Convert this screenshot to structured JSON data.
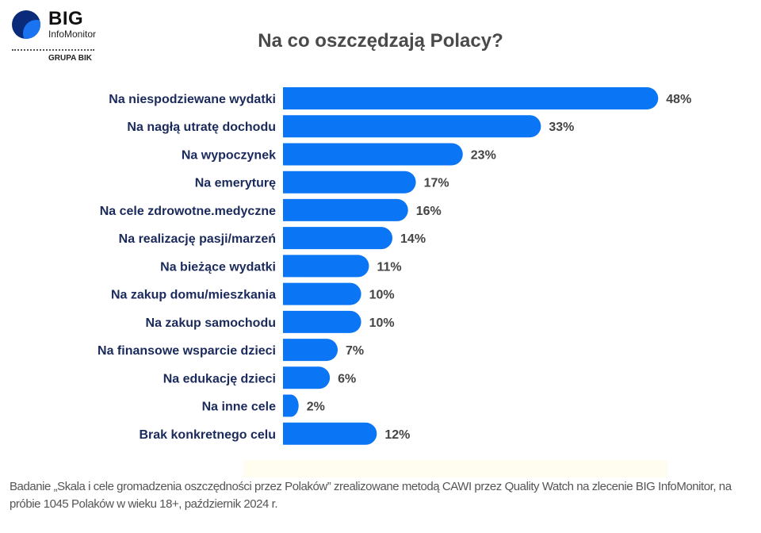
{
  "logo": {
    "name": "BIG",
    "sub": "InfoMonitor",
    "group": "GRUPA BIK"
  },
  "colors": {
    "bar": "#0a75f5",
    "category": "#1b2a5c",
    "value": "#444444"
  },
  "chart_data": {
    "type": "bar",
    "orientation": "horizontal",
    "title": "Na co oszczędzają Polacy?",
    "categories": [
      "Na niespodziewane wydatki",
      "Na nagłą utratę dochodu",
      "Na wypoczynek",
      "Na emeryturę",
      "Na cele zdrowotne.medyczne",
      "Na realizację pasji/marzeń",
      "Na bieżące wydatki",
      "Na zakup domu/mieszkania",
      "Na zakup samochodu",
      "Na finansowe wsparcie dzieci",
      "Na edukację dzieci",
      "Na inne cele",
      "Brak konkretnego celu"
    ],
    "values": [
      48,
      33,
      23,
      17,
      16,
      14,
      11,
      10,
      10,
      7,
      6,
      2,
      12
    ],
    "value_labels": [
      "48%",
      "33%",
      "23%",
      "17%",
      "16%",
      "14%",
      "11%",
      "10%",
      "10%",
      "7%",
      "6%",
      "2%",
      "12%"
    ],
    "unit": "%",
    "grid": false
  },
  "footer": "Badanie „Skala i cele gromadzenia oszczędności przez Polaków” zrealizowane metodą CAWI przez Quality Watch na zlecenie BIG InfoMonitor, na próbie 1045 Polaków w wieku 18+, październik 2024 r."
}
